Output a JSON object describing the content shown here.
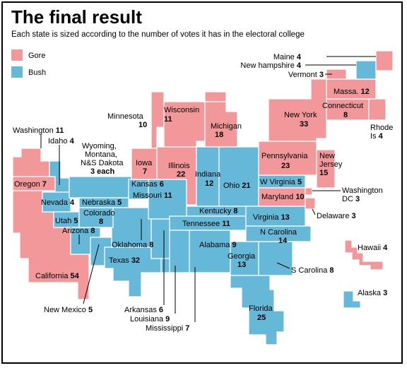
{
  "header": {
    "title": "The final result",
    "subtitle": "Each state is sized according to the number of votes it has in the electoral college"
  },
  "legend": [
    {
      "name": "Gore",
      "color": "#f3989a"
    },
    {
      "name": "Bush",
      "color": "#66b8d9"
    }
  ],
  "colors": {
    "gore": "#f3989a",
    "bush": "#66b8d9"
  },
  "states": [
    {
      "id": "washington",
      "name": "Washington",
      "ev": "11",
      "winner": "gore"
    },
    {
      "id": "oregon",
      "name": "Oregon",
      "ev": "7",
      "winner": "gore"
    },
    {
      "id": "california",
      "name": "California",
      "ev": "54",
      "winner": "gore"
    },
    {
      "id": "idaho",
      "name": "Idaho",
      "ev": "4",
      "winner": "bush"
    },
    {
      "id": "nevada",
      "name": "Nevada",
      "ev": "4",
      "winner": "bush"
    },
    {
      "id": "utah",
      "name": "Utah",
      "ev": "5",
      "winner": "bush"
    },
    {
      "id": "arizona",
      "name": "Arizona",
      "ev": "8",
      "winner": "bush"
    },
    {
      "id": "wmn",
      "name": "Wyoming, Montana, N&S Dakota",
      "ev": "3 each",
      "winner": "bush"
    },
    {
      "id": "colorado",
      "name": "Colorado",
      "ev": "8",
      "winner": "bush"
    },
    {
      "id": "newmexico",
      "name": "New Mexico",
      "ev": "5",
      "winner": "gore"
    },
    {
      "id": "nebraska",
      "name": "Nebraska",
      "ev": "5",
      "winner": "bush"
    },
    {
      "id": "kansas",
      "name": "Kansas",
      "ev": "6",
      "winner": "bush"
    },
    {
      "id": "oklahoma",
      "name": "Oklahoma",
      "ev": "8",
      "winner": "bush"
    },
    {
      "id": "texas",
      "name": "Texas",
      "ev": "32",
      "winner": "bush"
    },
    {
      "id": "minnesota",
      "name": "Minnesota",
      "ev": "10",
      "winner": "gore"
    },
    {
      "id": "iowa",
      "name": "Iowa",
      "ev": "7",
      "winner": "gore"
    },
    {
      "id": "missouri",
      "name": "Missouri",
      "ev": "11",
      "winner": "bush"
    },
    {
      "id": "arkansas",
      "name": "Arkansas",
      "ev": "6",
      "winner": "bush"
    },
    {
      "id": "louisiana",
      "name": "Louisiana",
      "ev": "9",
      "winner": "bush"
    },
    {
      "id": "wisconsin",
      "name": "Wisconsin",
      "ev": "11",
      "winner": "gore"
    },
    {
      "id": "illinois",
      "name": "Illinois",
      "ev": "22",
      "winner": "gore"
    },
    {
      "id": "michigan",
      "name": "Michigan",
      "ev": "18",
      "winner": "gore"
    },
    {
      "id": "indiana",
      "name": "Indiana",
      "ev": "12",
      "winner": "bush"
    },
    {
      "id": "ohio",
      "name": "Ohio",
      "ev": "21",
      "winner": "bush"
    },
    {
      "id": "kentucky",
      "name": "Kentucky",
      "ev": "8",
      "winner": "bush"
    },
    {
      "id": "tennessee",
      "name": "Tennessee",
      "ev": "11",
      "winner": "bush"
    },
    {
      "id": "mississippi",
      "name": "Mississippi",
      "ev": "7",
      "winner": "bush"
    },
    {
      "id": "alabama",
      "name": "Alabama",
      "ev": "9",
      "winner": "bush"
    },
    {
      "id": "georgia",
      "name": "Georgia",
      "ev": "13",
      "winner": "bush"
    },
    {
      "id": "florida",
      "name": "Florida",
      "ev": "25",
      "winner": "bush"
    },
    {
      "id": "scarolina",
      "name": "S Carolina",
      "ev": "8",
      "winner": "bush"
    },
    {
      "id": "ncarolina",
      "name": "N Carolina",
      "ev": "14",
      "winner": "bush"
    },
    {
      "id": "virginia",
      "name": "Virginia",
      "ev": "13",
      "winner": "bush"
    },
    {
      "id": "wvirginia",
      "name": "W Virginia",
      "ev": "5",
      "winner": "bush"
    },
    {
      "id": "maryland",
      "name": "Maryland",
      "ev": "10",
      "winner": "gore"
    },
    {
      "id": "dc",
      "name": "Washington DC",
      "ev": "3",
      "winner": "gore"
    },
    {
      "id": "delaware",
      "name": "Delaware",
      "ev": "3",
      "winner": "gore"
    },
    {
      "id": "pennsylvania",
      "name": "Pennsylvania",
      "ev": "23",
      "winner": "gore"
    },
    {
      "id": "newjersey",
      "name": "New Jersey",
      "ev": "15",
      "winner": "gore"
    },
    {
      "id": "newyork",
      "name": "New York",
      "ev": "33",
      "winner": "gore"
    },
    {
      "id": "connecticut",
      "name": "Connecticut",
      "ev": "8",
      "winner": "gore"
    },
    {
      "id": "rhodeisland",
      "name": "Rhode Is",
      "ev": "4",
      "winner": "gore"
    },
    {
      "id": "massachusetts",
      "name": "Massa.",
      "ev": "12",
      "winner": "gore"
    },
    {
      "id": "vermont",
      "name": "Vermont",
      "ev": "3",
      "winner": "gore"
    },
    {
      "id": "newhampshire",
      "name": "New hampshire",
      "ev": "4",
      "winner": "bush"
    },
    {
      "id": "maine",
      "name": "Maine",
      "ev": "4",
      "winner": "gore"
    },
    {
      "id": "hawaii",
      "name": "Hawaii",
      "ev": "4",
      "winner": "gore"
    },
    {
      "id": "alaska",
      "name": "Alaska",
      "ev": "3",
      "winner": "bush"
    }
  ]
}
